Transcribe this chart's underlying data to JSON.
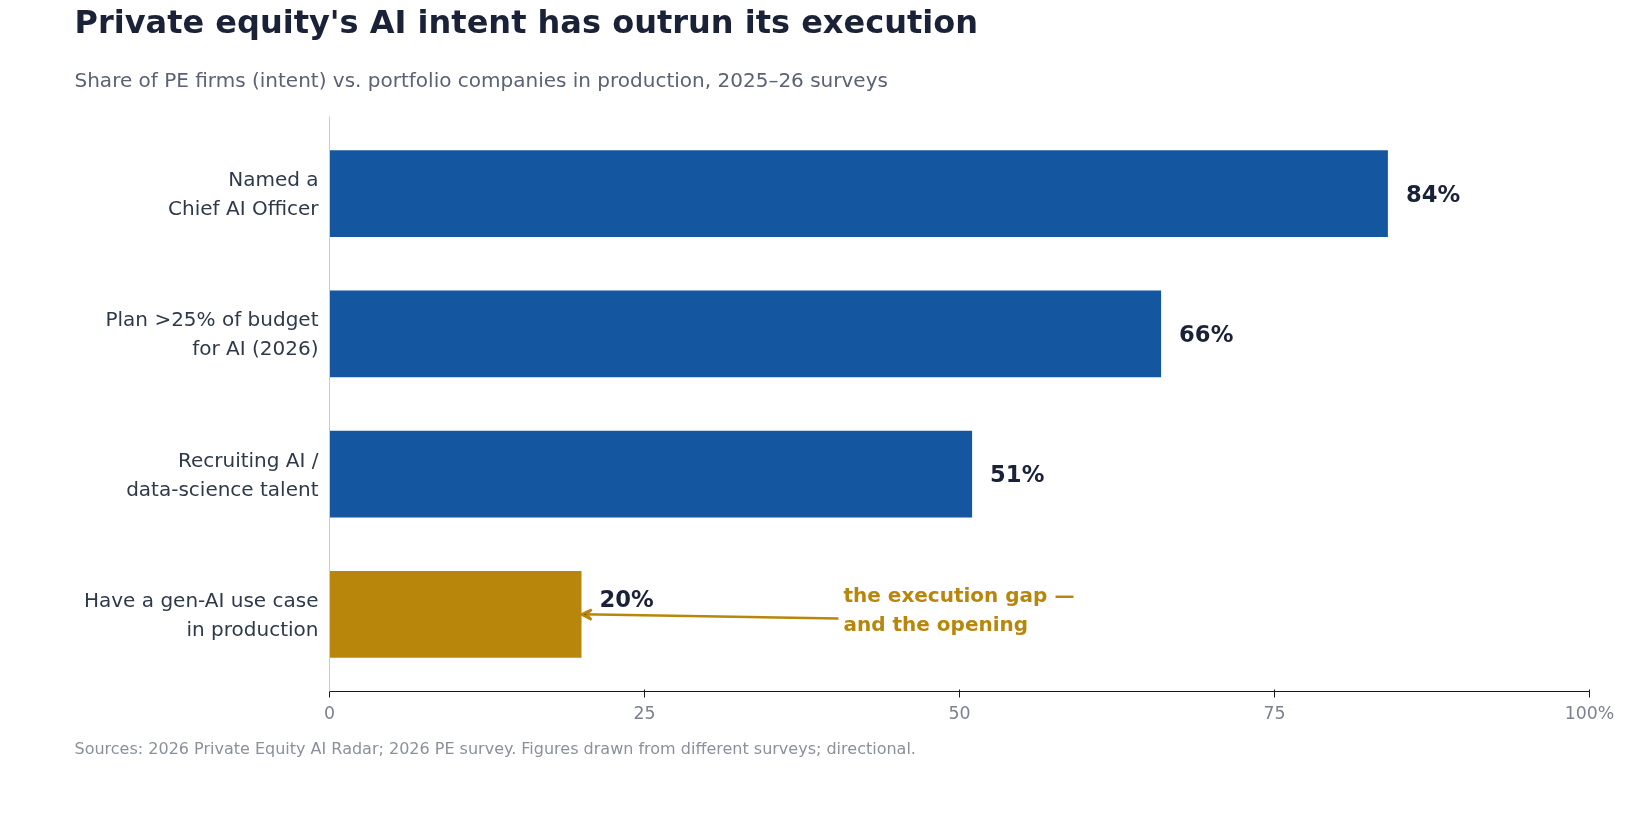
{
  "chart_data": {
    "type": "bar",
    "orientation": "horizontal",
    "title": "Private equity's AI intent has outrun its execution",
    "subtitle": "Share of PE firms (intent) vs. portfolio companies in production, 2025–26 surveys",
    "categories": [
      "Named a\nChief AI Officer",
      "Plan >25% of budget\nfor AI (2026)",
      "Recruiting AI /\ndata-science talent",
      "Have a gen-AI use case\nin production"
    ],
    "values": [
      84,
      66,
      51,
      20
    ],
    "colors": [
      "#1457a0",
      "#1457a0",
      "#1457a0",
      "#b8860b"
    ],
    "value_labels": [
      "84%",
      "66%",
      "51%",
      "20%"
    ],
    "xlim": [
      0,
      100
    ],
    "xticks": [
      0,
      25,
      50,
      75,
      {
        "value": 100,
        "label": "100%"
      }
    ],
    "grid": false,
    "annotations": [
      {
        "text": "the execution gap —\nand the opening",
        "x": 20,
        "y": "Have a gen-AI use case\nin production"
      },
      "Sources: 2026 Private Equity AI Radar; 2026 PE survey. Figures drawn from different surveys; directional."
    ]
  }
}
